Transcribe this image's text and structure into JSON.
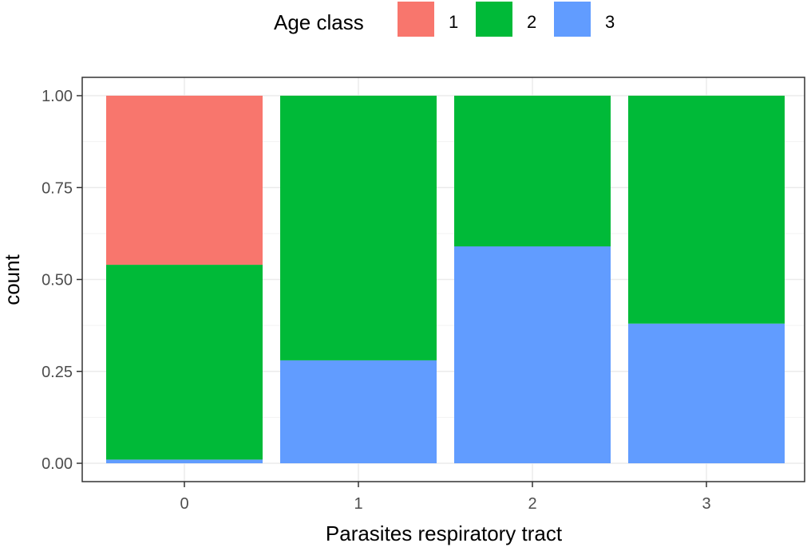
{
  "chart_data": {
    "type": "bar",
    "stacked": true,
    "xlabel": "Parasites respiratory tract",
    "ylabel": "count",
    "categories": [
      "0",
      "1",
      "2",
      "3"
    ],
    "ylim": [
      0,
      1
    ],
    "yticks": [
      0,
      0.25,
      0.5,
      0.75,
      1.0
    ],
    "ytick_labels": [
      "0.00",
      "0.25",
      "0.50",
      "0.75",
      "1.00"
    ],
    "grid": true,
    "legend": {
      "title": "Age class",
      "position": "top"
    },
    "series": [
      {
        "name": "3",
        "color": "#619CFF",
        "values": [
          0.01,
          0.28,
          0.59,
          0.38
        ]
      },
      {
        "name": "2",
        "color": "#00BA38",
        "values": [
          0.53,
          0.72,
          0.41,
          0.62
        ]
      },
      {
        "name": "1",
        "color": "#F8766D",
        "values": [
          0.46,
          0.0,
          0.0,
          0.0
        ]
      }
    ],
    "legend_order": [
      "1",
      "2",
      "3"
    ]
  }
}
